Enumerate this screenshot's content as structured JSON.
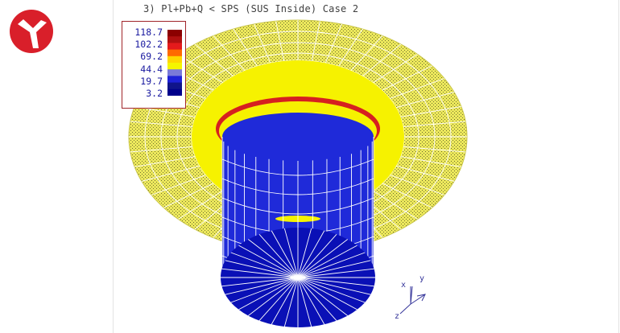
{
  "plot": {
    "title": "3) Pl+Pb+Q < SPS (SUS Inside) Case 2"
  },
  "legend": {
    "values": [
      "118.7",
      "102.2",
      "69.2",
      "44.4",
      "19.7",
      "3.2"
    ],
    "colors": [
      "#8b0000",
      "#e41a1c",
      "#ffd700",
      "#f5f500",
      "#1e22d8",
      "#00008b"
    ]
  },
  "triad": {
    "x": "x",
    "y": "y",
    "z": "z"
  },
  "colors": {
    "logo": "#d91f2a",
    "flange": "#e9e55a",
    "band_yellow": "#f5f200",
    "band_red": "#cc1f1f",
    "cylinder_blue": "#1f2ad9",
    "cylinder_dark": "#0b12b0",
    "mesh": "#ffffff"
  }
}
